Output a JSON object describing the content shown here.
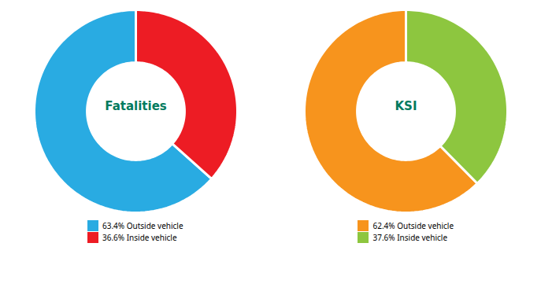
{
  "chart_data": [
    {
      "type": "pie",
      "title": "Fatalities",
      "categories": [
        "63.4% Outside vehicle",
        "36.6% Inside vehicle"
      ],
      "values": [
        63.4,
        36.6
      ],
      "colors": [
        "#29ABE2",
        "#ED1C24"
      ],
      "legend": "bottom"
    },
    {
      "type": "pie",
      "title": "KSI",
      "categories": [
        "62.4% Outside vehicle",
        "37.6% Inside vehicle"
      ],
      "values": [
        62.4,
        37.6
      ],
      "colors": [
        "#F7941D",
        "#8DC63F"
      ],
      "legend": "bottom"
    }
  ]
}
